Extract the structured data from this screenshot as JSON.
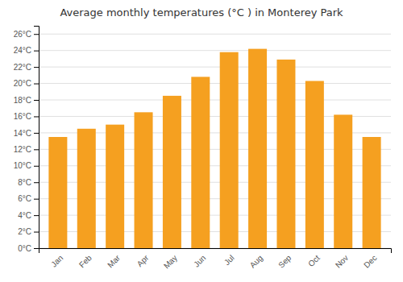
{
  "chart_data": {
    "type": "bar",
    "title": "Average monthly temperatures (°C ) in Monterey Park",
    "categories": [
      "Jan",
      "Feb",
      "Mar",
      "Apr",
      "May",
      "Jun",
      "Jul",
      "Aug",
      "Sep",
      "Oct",
      "Nov",
      "Dec"
    ],
    "values": [
      13.5,
      14.5,
      15.0,
      16.5,
      18.5,
      20.8,
      23.8,
      24.2,
      22.9,
      20.3,
      16.2,
      13.5
    ],
    "color": "#F5A020",
    "ylim": [
      0,
      27
    ],
    "yticks": [
      {
        "value": 0,
        "label": "0°C"
      },
      {
        "value": 2,
        "label": "2°C"
      },
      {
        "value": 4,
        "label": "4°C"
      },
      {
        "value": 6,
        "label": "6°C"
      },
      {
        "value": 8,
        "label": "8°C"
      },
      {
        "value": 10,
        "label": "10°C"
      },
      {
        "value": 12,
        "label": "12°C"
      },
      {
        "value": 14,
        "label": "14°C"
      },
      {
        "value": 16,
        "label": "16°C"
      },
      {
        "value": 18,
        "label": "18°C"
      },
      {
        "value": 20,
        "label": "20°C"
      },
      {
        "value": 22,
        "label": "22°C"
      },
      {
        "value": 24,
        "label": "24°C"
      },
      {
        "value": 26,
        "label": "26°C"
      }
    ],
    "grid": true
  }
}
